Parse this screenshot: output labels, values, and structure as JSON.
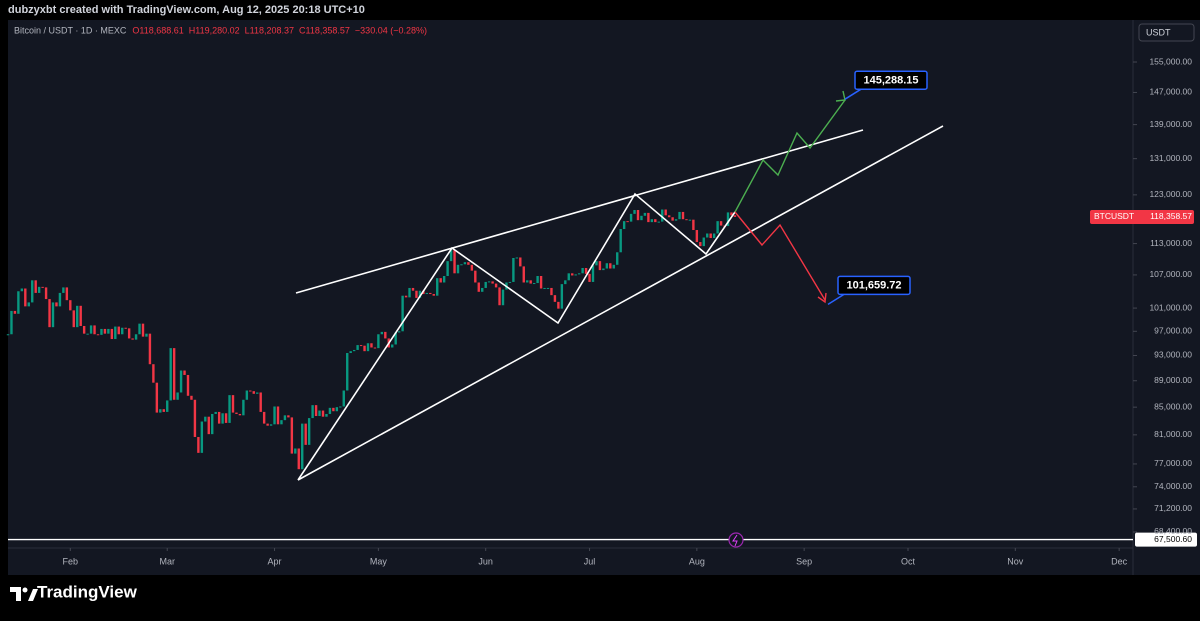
{
  "chart_data": {
    "type": "candlestick",
    "watermark": "dubzyxbt created with TradingView.com, Aug 12, 2025 20:18 UTC+10",
    "symbol": "Bitcoin / USDT · 1D · MEXC",
    "ohlc_legend": [
      "O118,688.61",
      "H119,280.02",
      "L118,208.37",
      "C118,358.57",
      "−330.04 (−0.28%)"
    ],
    "currency": "USDT",
    "up_color": "#089981",
    "down_color": "#f23645",
    "log_scale": true,
    "grid": false,
    "values": [
      96500,
      100500,
      100000,
      104000,
      104500,
      101300,
      102000,
      106000,
      103700,
      104800,
      104700,
      102600,
      97700,
      102000,
      101300,
      103700,
      104700,
      102400,
      100600,
      97700,
      101400,
      97900,
      96600,
      96600,
      98000,
      96500,
      96400,
      97400,
      96600,
      97400,
      95700,
      97800,
      96500,
      97600,
      97500,
      95800,
      95600,
      96500,
      98300,
      96100,
      96600,
      91600,
      88700,
      84200,
      84700,
      84300,
      86000,
      94200,
      86100,
      87200,
      90600,
      89900,
      86700,
      86100,
      80700,
      78500,
      82900,
      83600,
      81100,
      84000,
      84300,
      82600,
      84100,
      82700,
      86800,
      84200,
      84000,
      83800,
      86100,
      87500,
      87400,
      87000,
      87200,
      84300,
      82600,
      82300,
      82500,
      85100,
      82500,
      83100,
      83800,
      83500,
      78400,
      79100,
      76300,
      82600,
      79600,
      83400,
      85300,
      83700,
      84500,
      83600,
      84000,
      84900,
      84400,
      85000,
      85100,
      87500,
      93400,
      93700,
      93900,
      94700,
      94600,
      93700,
      95000,
      94300,
      94200,
      96500,
      96900,
      95800,
      94300,
      94800,
      96800,
      97000,
      103200,
      102900,
      104600,
      104100,
      102800,
      104100,
      103500,
      103700,
      103500,
      103200,
      106400,
      105600,
      106800,
      109600,
      111700,
      107300,
      108900,
      109000,
      109400,
      108900,
      107800,
      105600,
      103900,
      104600,
      105700,
      105800,
      105400,
      104700,
      101500,
      104300,
      105600,
      105700,
      110200,
      110300,
      108600,
      105600,
      106000,
      105400,
      105500,
      106800,
      104500,
      104600,
      104600,
      103300,
      102100,
      100900,
      105300,
      106000,
      107300,
      106900,
      107100,
      107300,
      108300,
      107200,
      105700,
      108800,
      109600,
      107900,
      108200,
      109200,
      108200,
      108900,
      111300,
      115900,
      117500,
      117400,
      119000,
      119800,
      117700,
      118600,
      119200,
      117300,
      117900,
      117300,
      117400,
      119900,
      118700,
      118300,
      117600,
      117900,
      119400,
      117900,
      117800,
      117800,
      115700,
      113300,
      112500,
      114200,
      115000,
      114100,
      115000,
      117500,
      116600,
      116500,
      119300,
      118700,
      118358.57
    ],
    "xlim": [
      0,
      325
    ],
    "xticks": [
      {
        "value": 18,
        "label": "Feb"
      },
      {
        "value": 46,
        "label": "Mar"
      },
      {
        "value": 77,
        "label": "Apr"
      },
      {
        "value": 107,
        "label": "May"
      },
      {
        "value": 138,
        "label": "Jun"
      },
      {
        "value": 168,
        "label": "Jul"
      },
      {
        "value": 199,
        "label": "Aug"
      },
      {
        "value": 230,
        "label": "Sep"
      },
      {
        "value": 260,
        "label": "Oct"
      },
      {
        "value": 291,
        "label": "Nov"
      },
      {
        "value": 321,
        "label": "Dec"
      }
    ],
    "ylim": [
      66520,
      166760
    ],
    "yticks": [
      {
        "value": 155000,
        "label": "155,000.00"
      },
      {
        "value": 147000,
        "label": "147,000.00"
      },
      {
        "value": 139000,
        "label": "139,000.00"
      },
      {
        "value": 131000,
        "label": "131,000.00"
      },
      {
        "value": 123000,
        "label": "123,000.00"
      },
      {
        "value": 113000,
        "label": "113,000.00"
      },
      {
        "value": 107000,
        "label": "107,000.00"
      },
      {
        "value": 101000,
        "label": "101,000.00"
      },
      {
        "value": 97000,
        "label": "97,000.00"
      },
      {
        "value": 93000,
        "label": "93,000.00"
      },
      {
        "value": 89000,
        "label": "89,000.00"
      },
      {
        "value": 85000,
        "label": "85,000.00"
      },
      {
        "value": 81000,
        "label": "81,000.00"
      },
      {
        "value": 77000,
        "label": "77,000.00"
      },
      {
        "value": 74000,
        "label": "74,000.00"
      },
      {
        "value": 71200,
        "label": "71,200.00"
      },
      {
        "value": 68400,
        "label": "68,400.00"
      }
    ],
    "current_price": {
      "name": "BTCUSDT",
      "value": 118358.57,
      "label": "118,358.57"
    },
    "price_line": {
      "value": 67500.6,
      "label": "67,500.60"
    },
    "annotations": [
      {
        "value": 145288.15,
        "label": "145,288.15"
      },
      {
        "value": 101659.72,
        "label": "101,659.72"
      }
    ],
    "footer_brand": "TradingView"
  }
}
